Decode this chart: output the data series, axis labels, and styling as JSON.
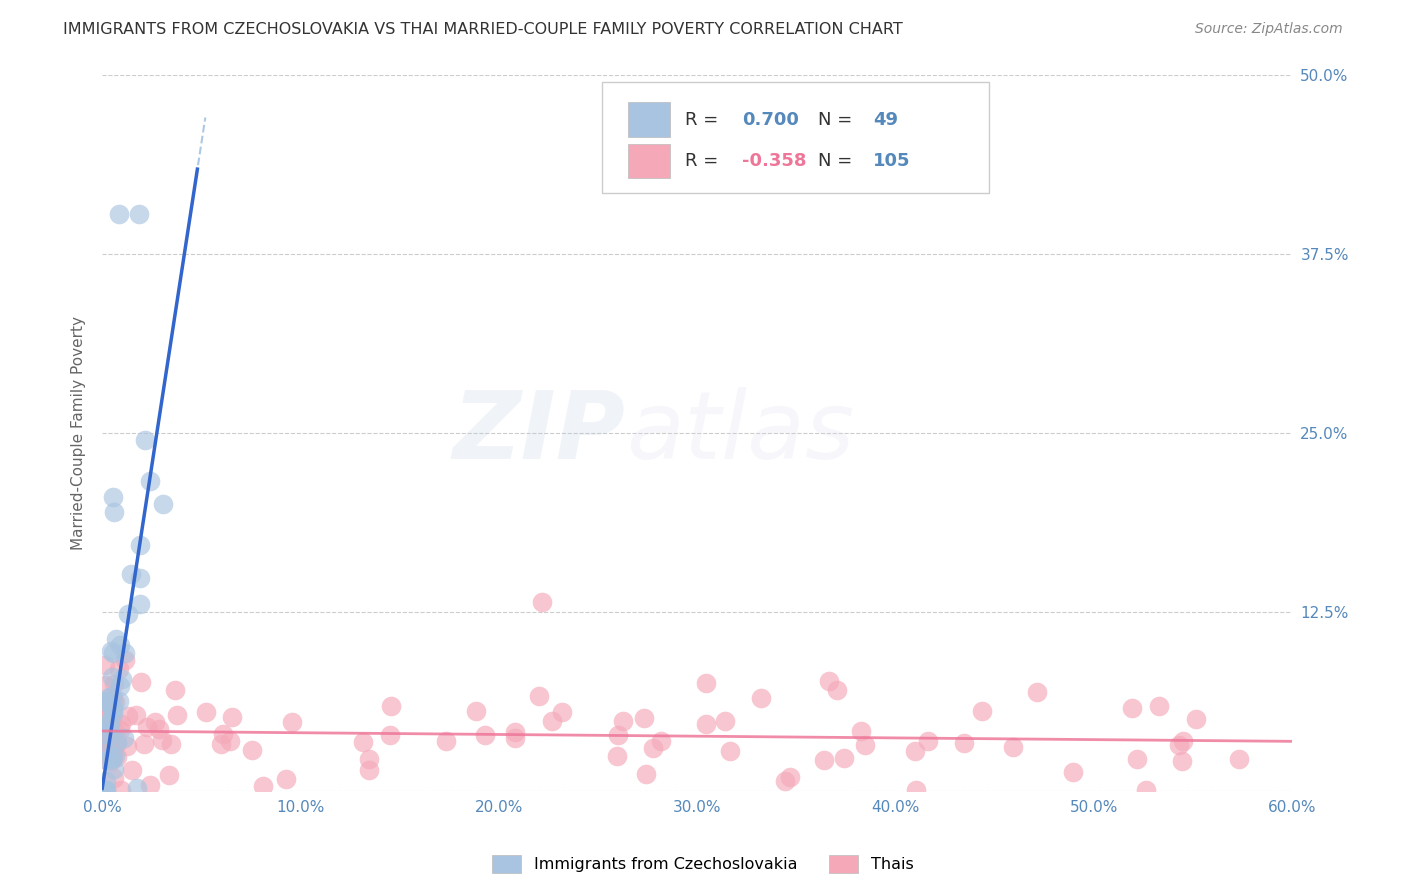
{
  "title": "IMMIGRANTS FROM CZECHOSLOVAKIA VS THAI MARRIED-COUPLE FAMILY POVERTY CORRELATION CHART",
  "source": "Source: ZipAtlas.com",
  "ylabel": "Married-Couple Family Poverty",
  "xlim": [
    0,
    0.6
  ],
  "ylim": [
    0,
    0.5
  ],
  "xtick_vals": [
    0.0,
    0.1,
    0.2,
    0.3,
    0.4,
    0.5,
    0.6
  ],
  "xticklabels": [
    "0.0%",
    "10.0%",
    "20.0%",
    "30.0%",
    "40.0%",
    "50.0%",
    "60.0%"
  ],
  "ytick_vals": [
    0.0,
    0.125,
    0.25,
    0.375,
    0.5
  ],
  "yticklabels_right": [
    "",
    "12.5%",
    "25.0%",
    "37.5%",
    "50.0%"
  ],
  "blue_R": 0.7,
  "blue_N": 49,
  "pink_R": -0.358,
  "pink_N": 105,
  "blue_scatter_color": "#A8C4E0",
  "pink_scatter_color": "#F4A8B8",
  "blue_line_color": "#3366CC",
  "pink_line_color": "#EE7799",
  "blue_dashed_color": "#99BBDD",
  "grid_color": "#CCCCCC",
  "title_color": "#333333",
  "axis_tick_color": "#5588BB",
  "watermark_color": "#C0D8EE",
  "legend_R_color": "#5588BB",
  "legend_N_color": "#5588BB",
  "source_color": "#888888",
  "ylabel_color": "#666666",
  "blue_line_slope": 9.0,
  "blue_line_intercept": 0.002,
  "pink_line_slope": -0.012,
  "pink_line_intercept": 0.042
}
